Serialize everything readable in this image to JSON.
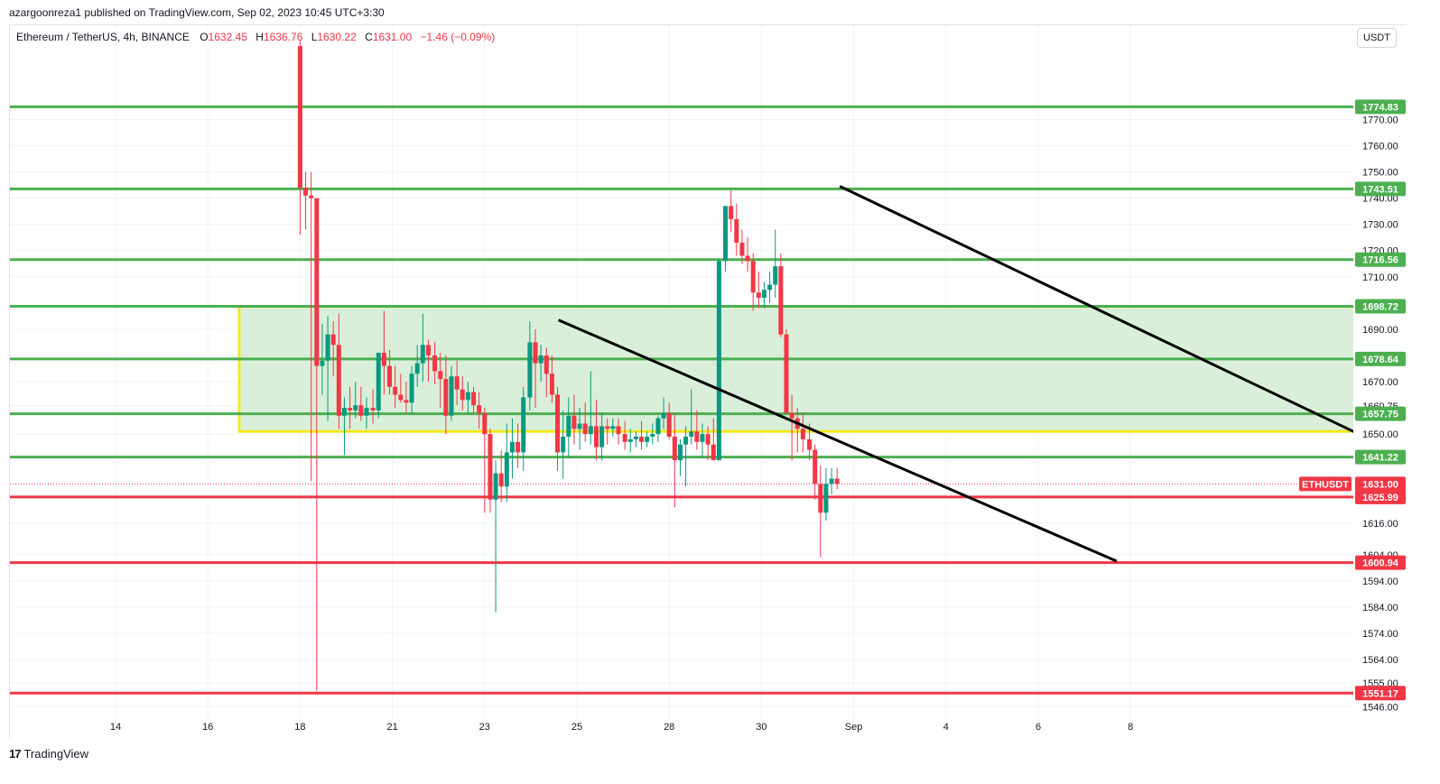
{
  "header": {
    "published": "azargoonreza1 published on TradingView.com, Sep 02, 2023 10:45 UTC+3:30"
  },
  "legend": {
    "symbol": "Ethereum / TetherUS, 4h, BINANCE",
    "o_label": "O",
    "o_value": "1632.45",
    "h_label": "H",
    "h_value": "1636.76",
    "l_label": "L",
    "l_value": "1630.22",
    "c_label": "C",
    "c_value": "1631.00",
    "change": "−1.46 (−0.09%)"
  },
  "currency_button": "USDT",
  "footer": {
    "logo": "17",
    "brand": "TradingView"
  },
  "colors": {
    "up": "#089981",
    "down": "#f23645",
    "support": "#f23645",
    "resistance": "#4caf50",
    "zone_fill": "#d9efd9",
    "zone_border": "#f5e71a",
    "trendline": "#000000",
    "grid": "#f0f3fa"
  },
  "chart_data": {
    "type": "candlestick",
    "symbol_tag": "ETHUSDT",
    "ylim": [
      1543,
      1797
    ],
    "y_ticks": [
      "1546.00",
      "1555.00",
      "1564.00",
      "1574.00",
      "1584.00",
      "1594.00",
      "1604.00",
      "1616.00",
      "1650.00",
      "1660.75",
      "1670.00",
      "1680.00",
      "1690.00",
      "1710.00",
      "1720.00",
      "1730.00",
      "1740.00",
      "1750.00",
      "1760.00",
      "1770.00"
    ],
    "x_ticks": [
      {
        "label": "14",
        "t": 0
      },
      {
        "label": "16",
        "t": 1
      },
      {
        "label": "18",
        "t": 2
      },
      {
        "label": "21",
        "t": 3
      },
      {
        "label": "23",
        "t": 4
      },
      {
        "label": "25",
        "t": 5
      },
      {
        "label": "28",
        "t": 6
      },
      {
        "label": "30",
        "t": 7
      },
      {
        "label": "Sep",
        "t": 8
      },
      {
        "label": "4",
        "t": 9
      },
      {
        "label": "6",
        "t": 10
      },
      {
        "label": "8",
        "t": 11
      }
    ],
    "horizontal_levels": [
      {
        "value": 1774.83,
        "label": "1774.83",
        "kind": "resistance"
      },
      {
        "value": 1743.51,
        "label": "1743.51",
        "kind": "resistance"
      },
      {
        "value": 1716.56,
        "label": "1716.56",
        "kind": "resistance"
      },
      {
        "value": 1698.72,
        "label": "1698.72",
        "kind": "resistance"
      },
      {
        "value": 1678.64,
        "label": "1678.64",
        "kind": "resistance"
      },
      {
        "value": 1657.75,
        "label": "1657.75",
        "kind": "resistance"
      },
      {
        "value": 1641.22,
        "label": "1641.22",
        "kind": "resistance"
      },
      {
        "value": 1625.99,
        "label": "1625.99",
        "kind": "support"
      },
      {
        "value": 1600.94,
        "label": "1600.94",
        "kind": "support"
      },
      {
        "value": 1551.17,
        "label": "1551.17",
        "kind": "support"
      }
    ],
    "last_price": {
      "value": 1631.0,
      "label": "1631.00"
    },
    "zone": {
      "x_start": 1.34,
      "x_end": 14.86,
      "y_low": 1651,
      "y_high": 1698.7
    },
    "trendlines": [
      {
        "x1": 4.8,
        "y1": 1693.5,
        "x2": 10.85,
        "y2": 1601.5
      },
      {
        "x1": 7.85,
        "y1": 1744.5,
        "x2": 13.95,
        "y2": 1642
      }
    ],
    "candles": [
      [
        2.0,
        1798,
        1800,
        1726,
        1744
      ],
      [
        2.06,
        1744,
        1750,
        1728,
        1741
      ],
      [
        2.12,
        1741,
        1750,
        1632,
        1740
      ],
      [
        2.18,
        1740,
        1740,
        1552,
        1676
      ],
      [
        2.24,
        1676,
        1692,
        1665,
        1678
      ],
      [
        2.3,
        1678,
        1695,
        1655,
        1688
      ],
      [
        2.36,
        1688,
        1693,
        1672,
        1684
      ],
      [
        2.42,
        1684,
        1696,
        1652,
        1657
      ],
      [
        2.48,
        1657,
        1664,
        1642,
        1660
      ],
      [
        2.54,
        1660,
        1668,
        1652,
        1659
      ],
      [
        2.6,
        1659,
        1670,
        1656,
        1661
      ],
      [
        2.66,
        1661,
        1668,
        1655,
        1657
      ],
      [
        2.72,
        1657,
        1664,
        1652,
        1660
      ],
      [
        2.79,
        1660,
        1667,
        1654,
        1659
      ],
      [
        2.85,
        1659,
        1681,
        1656,
        1681
      ],
      [
        2.91,
        1681,
        1697,
        1665,
        1676
      ],
      [
        2.97,
        1676,
        1682,
        1665,
        1668
      ],
      [
        3.03,
        1668,
        1676,
        1660,
        1665
      ],
      [
        3.09,
        1665,
        1673,
        1662,
        1663
      ],
      [
        3.15,
        1663,
        1670,
        1658,
        1662
      ],
      [
        3.21,
        1662,
        1676,
        1658,
        1673
      ],
      [
        3.27,
        1673,
        1684,
        1668,
        1677
      ],
      [
        3.33,
        1677,
        1696,
        1670,
        1684
      ],
      [
        3.39,
        1684,
        1686,
        1670,
        1680
      ],
      [
        3.46,
        1680,
        1685,
        1669,
        1674
      ],
      [
        3.52,
        1674,
        1681,
        1660,
        1671
      ],
      [
        3.58,
        1671,
        1680,
        1650,
        1657
      ],
      [
        3.64,
        1657,
        1676,
        1655,
        1672
      ],
      [
        3.7,
        1672,
        1678,
        1661,
        1667
      ],
      [
        3.76,
        1667,
        1672,
        1659,
        1663
      ],
      [
        3.82,
        1663,
        1670,
        1658,
        1666
      ],
      [
        3.88,
        1666,
        1668,
        1658,
        1661
      ],
      [
        3.94,
        1661,
        1666,
        1652,
        1658
      ],
      [
        4.0,
        1658,
        1660,
        1620,
        1650
      ],
      [
        4.06,
        1650,
        1652,
        1620,
        1625
      ],
      [
        4.12,
        1625,
        1640,
        1582,
        1635
      ],
      [
        4.18,
        1635,
        1644,
        1624,
        1630
      ],
      [
        4.24,
        1630,
        1654,
        1624,
        1643
      ],
      [
        4.3,
        1643,
        1656,
        1633,
        1647
      ],
      [
        4.36,
        1647,
        1654,
        1637,
        1643
      ],
      [
        4.42,
        1643,
        1668,
        1636,
        1664
      ],
      [
        4.49,
        1664,
        1693,
        1659,
        1685
      ],
      [
        4.55,
        1685,
        1690,
        1660,
        1677
      ],
      [
        4.61,
        1677,
        1684,
        1670,
        1680
      ],
      [
        4.67,
        1680,
        1683,
        1664,
        1673
      ],
      [
        4.73,
        1673,
        1680,
        1662,
        1665
      ],
      [
        4.79,
        1665,
        1668,
        1636,
        1643
      ],
      [
        4.85,
        1643,
        1659,
        1633,
        1649
      ],
      [
        4.91,
        1649,
        1664,
        1641,
        1657
      ],
      [
        4.97,
        1657,
        1665,
        1646,
        1652
      ],
      [
        5.03,
        1652,
        1660,
        1644,
        1654
      ],
      [
        5.09,
        1654,
        1662,
        1647,
        1650
      ],
      [
        5.15,
        1650,
        1674,
        1646,
        1653
      ],
      [
        5.21,
        1653,
        1663,
        1640,
        1645
      ],
      [
        5.27,
        1645,
        1658,
        1640,
        1653
      ],
      [
        5.33,
        1653,
        1656,
        1646,
        1652
      ],
      [
        5.39,
        1652,
        1656,
        1649,
        1653
      ],
      [
        5.45,
        1653,
        1656,
        1646,
        1650
      ],
      [
        5.52,
        1650,
        1655,
        1644,
        1647
      ],
      [
        5.58,
        1647,
        1652,
        1643,
        1648
      ],
      [
        5.64,
        1648,
        1651,
        1645,
        1649
      ],
      [
        5.7,
        1649,
        1655,
        1644,
        1647
      ],
      [
        5.76,
        1647,
        1651,
        1645,
        1649
      ],
      [
        5.82,
        1649,
        1654,
        1646,
        1650
      ],
      [
        5.88,
        1650,
        1657,
        1647,
        1656
      ],
      [
        5.94,
        1656,
        1664,
        1652,
        1658
      ],
      [
        6.0,
        1658,
        1662,
        1648,
        1649
      ],
      [
        6.06,
        1649,
        1658,
        1622,
        1640
      ],
      [
        6.12,
        1640,
        1648,
        1634,
        1646
      ],
      [
        6.18,
        1646,
        1653,
        1630,
        1649
      ],
      [
        6.24,
        1649,
        1667,
        1646,
        1651
      ],
      [
        6.3,
        1651,
        1659,
        1644,
        1647
      ],
      [
        6.36,
        1647,
        1654,
        1641,
        1650
      ],
      [
        6.42,
        1650,
        1653,
        1640,
        1646
      ],
      [
        6.48,
        1646,
        1656,
        1640,
        1640
      ],
      [
        6.54,
        1640,
        1717,
        1640,
        1716
      ],
      [
        6.61,
        1716,
        1737,
        1712,
        1737
      ],
      [
        6.67,
        1737,
        1743,
        1727,
        1732
      ],
      [
        6.73,
        1732,
        1738,
        1718,
        1723
      ],
      [
        6.79,
        1723,
        1728,
        1715,
        1718
      ],
      [
        6.85,
        1718,
        1725,
        1712,
        1716
      ],
      [
        6.91,
        1716,
        1719,
        1697,
        1704
      ],
      [
        6.97,
        1704,
        1712,
        1698,
        1702
      ],
      [
        7.03,
        1702,
        1708,
        1698,
        1705
      ],
      [
        7.09,
        1705,
        1712,
        1700,
        1707
      ],
      [
        7.15,
        1707,
        1728,
        1702,
        1714
      ],
      [
        7.21,
        1714,
        1719,
        1687,
        1688
      ],
      [
        7.27,
        1688,
        1690,
        1660,
        1658
      ],
      [
        7.33,
        1658,
        1665,
        1640,
        1656
      ],
      [
        7.39,
        1656,
        1660,
        1643,
        1652
      ],
      [
        7.45,
        1652,
        1658,
        1643,
        1648
      ],
      [
        7.52,
        1648,
        1654,
        1640,
        1644
      ],
      [
        7.58,
        1644,
        1646,
        1625,
        1631
      ],
      [
        7.64,
        1631,
        1638,
        1603,
        1620
      ],
      [
        7.7,
        1620,
        1637,
        1617,
        1631
      ],
      [
        7.76,
        1631,
        1637,
        1627,
        1633
      ],
      [
        7.82,
        1633,
        1637,
        1629,
        1631
      ]
    ]
  }
}
